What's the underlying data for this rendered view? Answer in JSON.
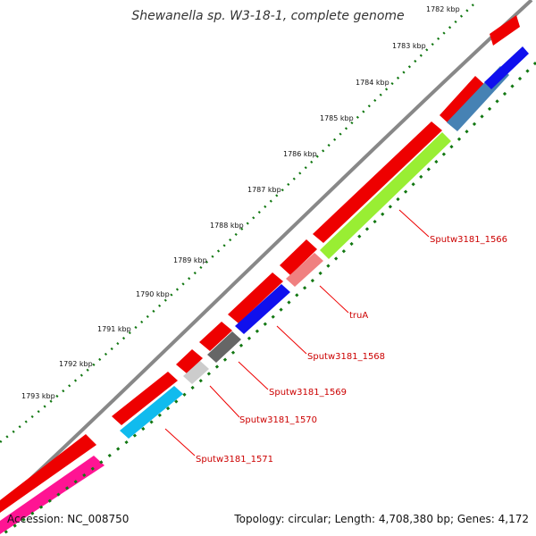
{
  "title": "Shewanella sp. W3-18-1, complete genome",
  "footer": {
    "accession": "Accession: NC_008750",
    "topology": "Topology: circular; Length: 4,708,380 bp; Genes: 4,172"
  },
  "ruler": {
    "labels": [
      "1782 kbp",
      "1783 kbp",
      "1784 kbp",
      "1785 kbp",
      "1786 kbp",
      "1787 kbp",
      "1788 kbp",
      "1789 kbp",
      "1790 kbp",
      "1791 kbp",
      "1792 kbp",
      "1793 kbp"
    ]
  },
  "genes": [
    {
      "label": "Sputw3181_1566",
      "color": "#99ee33"
    },
    {
      "label": "truA",
      "color": "#f08080"
    },
    {
      "label": "Sputw3181_1568",
      "color": "#1010ee"
    },
    {
      "label": "Sputw3181_1569",
      "color": "#666666"
    },
    {
      "label": "Sputw3181_1570",
      "color": "#cccccc"
    },
    {
      "label": "Sputw3181_1571",
      "color": "#10bbee"
    }
  ],
  "colors": {
    "backbone": "#888888",
    "cds_strand": "#ee0000",
    "ruler_dots": "#117711",
    "label_line": "#ee0000",
    "steelblue_gene": "#4682b4",
    "pink_gene": "#ff1493"
  }
}
